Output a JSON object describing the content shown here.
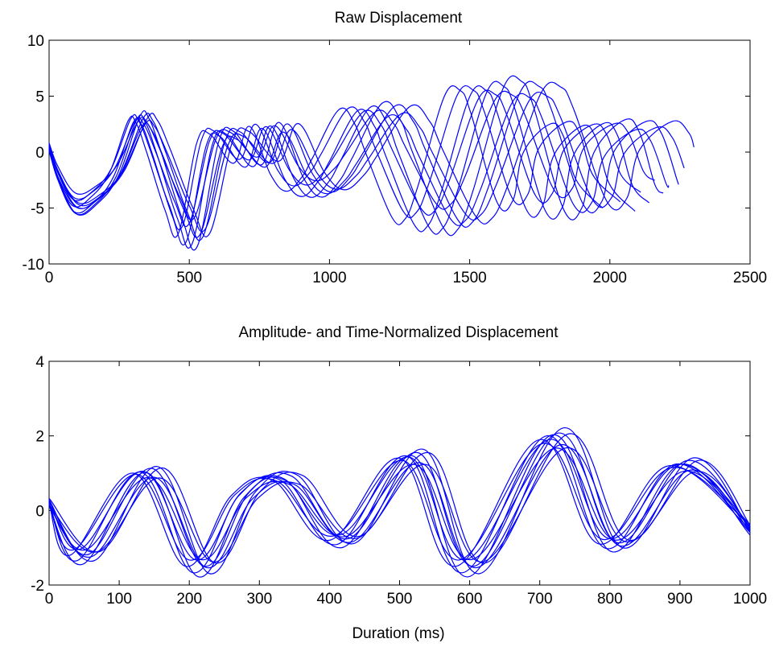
{
  "line_color": "#0000ff",
  "chart_data": [
    {
      "type": "line",
      "title": "Raw Displacement",
      "xlabel": "",
      "ylabel": "",
      "xlim": [
        0,
        2500
      ],
      "ylim": [
        -10,
        10
      ],
      "xticks": [
        "0",
        "500",
        "1000",
        "1500",
        "2000",
        "2500"
      ],
      "yticks": [
        "-10",
        "-5",
        "0",
        "5",
        "10"
      ],
      "grid": false,
      "base_x": [
        0,
        30,
        90,
        160,
        230,
        300,
        330,
        370,
        440,
        490,
        560,
        610,
        700,
        760,
        840,
        900,
        960,
        1000,
        1100,
        1160,
        1200,
        1300,
        1350,
        1400,
        1500,
        1560,
        1600,
        1700,
        1760,
        1800,
        1900,
        1950,
        2000,
        2100
      ],
      "base_y": [
        0.5,
        -2.0,
        -4.8,
        -4.0,
        -1.8,
        2.8,
        2.6,
        0.0,
        -5.2,
        -7.3,
        0.8,
        1.6,
        -1.0,
        2.3,
        -2.0,
        -3.5,
        -2.2,
        -0.5,
        3.8,
        2.5,
        0.0,
        -5.8,
        -6.0,
        -3.0,
        5.0,
        5.5,
        3.5,
        -4.5,
        -4.3,
        0.0,
        2.5,
        1.5,
        -2.5,
        -5.0
      ],
      "series": [
        {
          "xscale": 0.94,
          "yscale": 1.0,
          "ydelta": 0.0,
          "xend": 2000
        },
        {
          "xscale": 0.97,
          "yscale": 0.95,
          "ydelta": 0.3,
          "xend": 2040
        },
        {
          "xscale": 1.0,
          "yscale": 1.05,
          "ydelta": -0.3,
          "xend": 2090
        },
        {
          "xscale": 1.02,
          "yscale": 0.9,
          "ydelta": 0.2,
          "xend": 2110
        },
        {
          "xscale": 1.04,
          "yscale": 1.1,
          "ydelta": -0.2,
          "xend": 2140
        },
        {
          "xscale": 1.06,
          "yscale": 0.85,
          "ydelta": 0.4,
          "xend": 2160
        },
        {
          "xscale": 1.08,
          "yscale": 1.15,
          "ydelta": 0.0,
          "xend": 2190
        },
        {
          "xscale": 1.1,
          "yscale": 0.95,
          "ydelta": -0.4,
          "xend": 2210
        },
        {
          "xscale": 1.12,
          "yscale": 1.05,
          "ydelta": 0.1,
          "xend": 2240
        },
        {
          "xscale": 1.14,
          "yscale": 0.92,
          "ydelta": -0.1,
          "xend": 2265
        },
        {
          "xscale": 1.17,
          "yscale": 1.02,
          "ydelta": 0.2,
          "xend": 2300
        }
      ]
    },
    {
      "type": "line",
      "title": "Amplitude- and Time-Normalized Displacement",
      "xlabel": "Duration (ms)",
      "ylabel": "",
      "xlim": [
        0,
        1000
      ],
      "ylim": [
        -2,
        4
      ],
      "xticks": [
        "0",
        "100",
        "200",
        "300",
        "400",
        "500",
        "600",
        "700",
        "800",
        "900",
        "1000"
      ],
      "yticks": [
        "-2",
        "0",
        "2",
        "4"
      ],
      "grid": false,
      "base_x": [
        0,
        50,
        140,
        215,
        280,
        340,
        420,
        520,
        600,
        720,
        805,
        905,
        1000
      ],
      "base_y": [
        0.2,
        -1.2,
        1.0,
        -1.5,
        0.4,
        0.8,
        -0.8,
        1.4,
        -1.5,
        1.9,
        -0.9,
        1.2,
        -0.5
      ],
      "series": [
        {
          "xshift": -20,
          "yscale": 1.0,
          "ydelta": 0.0
        },
        {
          "xshift": -15,
          "yscale": 0.92,
          "ydelta": 0.05
        },
        {
          "xshift": -10,
          "yscale": 1.08,
          "ydelta": -0.05
        },
        {
          "xshift": -6,
          "yscale": 0.95,
          "ydelta": 0.1
        },
        {
          "xshift": -2,
          "yscale": 1.12,
          "ydelta": -0.1
        },
        {
          "xshift": 2,
          "yscale": 0.88,
          "ydelta": 0.0
        },
        {
          "xshift": 6,
          "yscale": 1.05,
          "ydelta": 0.08
        },
        {
          "xshift": 10,
          "yscale": 0.97,
          "ydelta": -0.08
        },
        {
          "xshift": 14,
          "yscale": 1.15,
          "ydelta": 0.03
        },
        {
          "xshift": 18,
          "yscale": 0.9,
          "ydelta": -0.03
        },
        {
          "xshift": 22,
          "yscale": 1.02,
          "ydelta": 0.12
        }
      ]
    }
  ]
}
